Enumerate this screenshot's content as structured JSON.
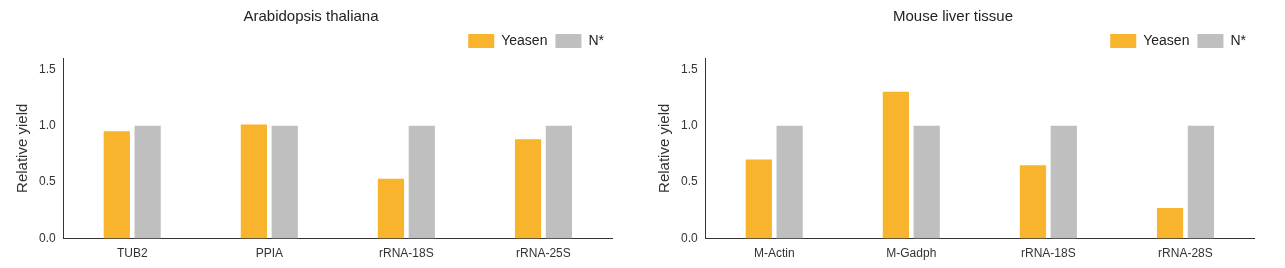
{
  "chart_data": [
    {
      "type": "bar",
      "title": "Arabidopsis thaliana",
      "y_label": "Relative yield",
      "categories": [
        "TUB2",
        "PPIA",
        "rRNA-18S",
        "rRNA-25S"
      ],
      "series": [
        {
          "name": "Yeasen",
          "color": "#f7b42c",
          "values": [
            0.95,
            1.01,
            0.53,
            0.88
          ]
        },
        {
          "name": "N*",
          "color": "#bfbfbf",
          "values": [
            1.0,
            1.0,
            1.0,
            1.0
          ]
        }
      ],
      "ylim": [
        0,
        1.6
      ],
      "yticks": [
        {
          "value": 0,
          "label": "0.0"
        },
        {
          "value": 0.5,
          "label": "0.5"
        },
        {
          "value": 1,
          "label": "1.0"
        },
        {
          "value": 1.5,
          "label": "1.5"
        }
      ],
      "grid": false,
      "legend": "upper right"
    },
    {
      "type": "bar",
      "title": "Mouse liver tissue",
      "y_label": "Relative yield",
      "categories": [
        "M-Actin",
        "M-Gadph",
        "rRNA-18S",
        "rRNA-28S"
      ],
      "series": [
        {
          "name": "Yeasen",
          "color": "#f7b42c",
          "values": [
            0.7,
            1.3,
            0.65,
            0.27
          ]
        },
        {
          "name": "N*",
          "color": "#bfbfbf",
          "values": [
            1.0,
            1.0,
            1.0,
            1.0
          ]
        }
      ],
      "ylim": [
        0,
        1.6
      ],
      "yticks": [
        {
          "value": 0,
          "label": "0.0"
        },
        {
          "value": 0.5,
          "label": "0.5"
        },
        {
          "value": 1,
          "label": "1.0"
        },
        {
          "value": 1.5,
          "label": "1.5"
        }
      ],
      "grid": false,
      "legend": "upper right"
    }
  ]
}
